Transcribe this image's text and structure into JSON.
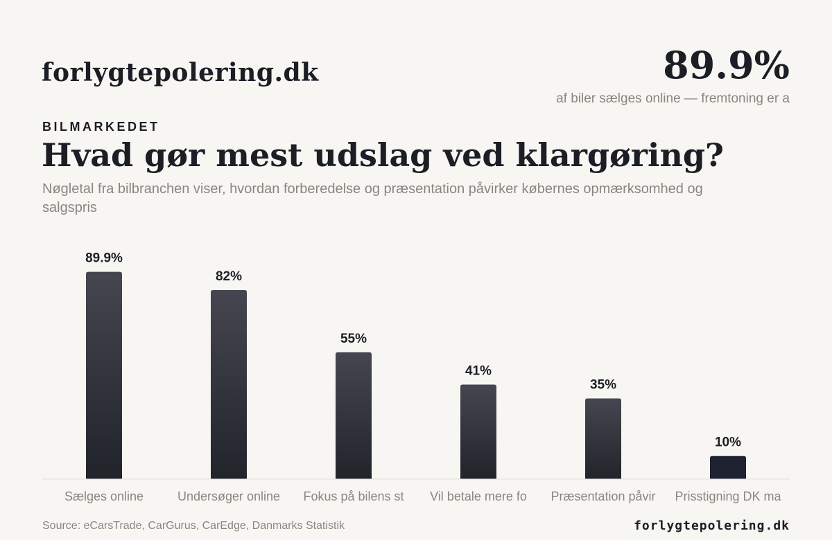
{
  "header": {
    "brand": "forlygtepolering.dk",
    "hero_value": "89.9%",
    "hero_caption": "af biler sælges online — fremtoning er a"
  },
  "intro": {
    "eyebrow": "BILMARKEDET",
    "title": "Hvad gør mest udslag ved klargøring?",
    "subtitle": "Nøgletal fra bilbranchen viser, hvordan forberedelse og præsentation påvirker købernes opmærksomhed og salgspris"
  },
  "chart_data": {
    "type": "bar",
    "title": "Hvad gør mest udslag ved klargøring?",
    "subtitle": "Nøgletal fra bilbranchen viser, hvordan forberedelse og præsentation påvirker købernes opmærksomhed og salgspris",
    "categories": [
      "Sælges online",
      "Undersøger online",
      "Fokus på bilens st",
      "Vil betale mere fo",
      "Præsentation påvir",
      "Prisstigning DK ma"
    ],
    "values": [
      89.9,
      82,
      55,
      41,
      35,
      10
    ],
    "value_labels": [
      "89.9%",
      "82%",
      "55%",
      "41%",
      "35%",
      "10%"
    ],
    "ylim": [
      0,
      100
    ],
    "xlabel": "",
    "ylabel": "",
    "grid": false,
    "legend": "none",
    "colors": {
      "bar_top": "#45464f",
      "bar_bottom": "#22242b",
      "bar_highlight": "#1f2230",
      "baseline": "#e2ddd6",
      "muted_text": "#8a8580"
    }
  },
  "footer": {
    "source": "Source: eCarsTrade, CarGurus, CarEdge, Danmarks Statistik",
    "brand": "forlygtepolering.dk"
  }
}
